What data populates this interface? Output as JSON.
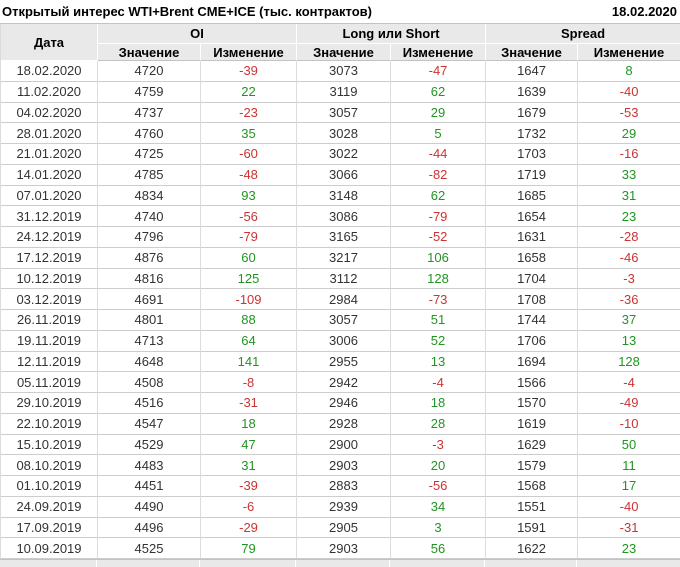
{
  "header": {
    "title": "Открытый интерес WTI+Brent CME+ICE (тыс. контрактов)",
    "date": "18.02.2020"
  },
  "colors": {
    "positive_change": "#219421",
    "negative_change": "#cc3333",
    "header_background": "#e9e9e9"
  },
  "chart_data": {
    "type": "table",
    "title": "Открытый интерес WTI+Brent CME+ICE (тыс. контрактов)",
    "as_of_date": "18.02.2020",
    "units": "тыс. контрактов",
    "date_column_label": "Дата",
    "value_label": "Значение",
    "change_label": "Изменение",
    "column_groups": [
      {
        "label": "OI",
        "subcolumns": [
          "Значение",
          "Изменение"
        ]
      },
      {
        "label": "Long или Short",
        "subcolumns": [
          "Значение",
          "Изменение"
        ]
      },
      {
        "label": "Spread",
        "subcolumns": [
          "Значение",
          "Изменение"
        ]
      }
    ],
    "rows": [
      {
        "date": "18.02.2020",
        "oi_value": 4720,
        "oi_change": -39,
        "long_short_value": 3073,
        "long_short_change": -47,
        "spread_value": 1647,
        "spread_change": 8
      },
      {
        "date": "11.02.2020",
        "oi_value": 4759,
        "oi_change": 22,
        "long_short_value": 3119,
        "long_short_change": 62,
        "spread_value": 1639,
        "spread_change": -40
      },
      {
        "date": "04.02.2020",
        "oi_value": 4737,
        "oi_change": -23,
        "long_short_value": 3057,
        "long_short_change": 29,
        "spread_value": 1679,
        "spread_change": -53
      },
      {
        "date": "28.01.2020",
        "oi_value": 4760,
        "oi_change": 35,
        "long_short_value": 3028,
        "long_short_change": 5,
        "spread_value": 1732,
        "spread_change": 29
      },
      {
        "date": "21.01.2020",
        "oi_value": 4725,
        "oi_change": -60,
        "long_short_value": 3022,
        "long_short_change": -44,
        "spread_value": 1703,
        "spread_change": -16
      },
      {
        "date": "14.01.2020",
        "oi_value": 4785,
        "oi_change": -48,
        "long_short_value": 3066,
        "long_short_change": -82,
        "spread_value": 1719,
        "spread_change": 33
      },
      {
        "date": "07.01.2020",
        "oi_value": 4834,
        "oi_change": 93,
        "long_short_value": 3148,
        "long_short_change": 62,
        "spread_value": 1685,
        "spread_change": 31
      },
      {
        "date": "31.12.2019",
        "oi_value": 4740,
        "oi_change": -56,
        "long_short_value": 3086,
        "long_short_change": -79,
        "spread_value": 1654,
        "spread_change": 23
      },
      {
        "date": "24.12.2019",
        "oi_value": 4796,
        "oi_change": -79,
        "long_short_value": 3165,
        "long_short_change": -52,
        "spread_value": 1631,
        "spread_change": -28
      },
      {
        "date": "17.12.2019",
        "oi_value": 4876,
        "oi_change": 60,
        "long_short_value": 3217,
        "long_short_change": 106,
        "spread_value": 1658,
        "spread_change": -46
      },
      {
        "date": "10.12.2019",
        "oi_value": 4816,
        "oi_change": 125,
        "long_short_value": 3112,
        "long_short_change": 128,
        "spread_value": 1704,
        "spread_change": -3
      },
      {
        "date": "03.12.2019",
        "oi_value": 4691,
        "oi_change": -109,
        "long_short_value": 2984,
        "long_short_change": -73,
        "spread_value": 1708,
        "spread_change": -36
      },
      {
        "date": "26.11.2019",
        "oi_value": 4801,
        "oi_change": 88,
        "long_short_value": 3057,
        "long_short_change": 51,
        "spread_value": 1744,
        "spread_change": 37
      },
      {
        "date": "19.11.2019",
        "oi_value": 4713,
        "oi_change": 64,
        "long_short_value": 3006,
        "long_short_change": 52,
        "spread_value": 1706,
        "spread_change": 13
      },
      {
        "date": "12.11.2019",
        "oi_value": 4648,
        "oi_change": 141,
        "long_short_value": 2955,
        "long_short_change": 13,
        "spread_value": 1694,
        "spread_change": 128
      },
      {
        "date": "05.11.2019",
        "oi_value": 4508,
        "oi_change": -8,
        "long_short_value": 2942,
        "long_short_change": -4,
        "spread_value": 1566,
        "spread_change": -4
      },
      {
        "date": "29.10.2019",
        "oi_value": 4516,
        "oi_change": -31,
        "long_short_value": 2946,
        "long_short_change": 18,
        "spread_value": 1570,
        "spread_change": -49
      },
      {
        "date": "22.10.2019",
        "oi_value": 4547,
        "oi_change": 18,
        "long_short_value": 2928,
        "long_short_change": 28,
        "spread_value": 1619,
        "spread_change": -10
      },
      {
        "date": "15.10.2019",
        "oi_value": 4529,
        "oi_change": 47,
        "long_short_value": 2900,
        "long_short_change": -3,
        "spread_value": 1629,
        "spread_change": 50
      },
      {
        "date": "08.10.2019",
        "oi_value": 4483,
        "oi_change": 31,
        "long_short_value": 2903,
        "long_short_change": 20,
        "spread_value": 1579,
        "spread_change": 11
      },
      {
        "date": "01.10.2019",
        "oi_value": 4451,
        "oi_change": -39,
        "long_short_value": 2883,
        "long_short_change": -56,
        "spread_value": 1568,
        "spread_change": 17
      },
      {
        "date": "24.09.2019",
        "oi_value": 4490,
        "oi_change": -6,
        "long_short_value": 2939,
        "long_short_change": 34,
        "spread_value": 1551,
        "spread_change": -40
      },
      {
        "date": "17.09.2019",
        "oi_value": 4496,
        "oi_change": -29,
        "long_short_value": 2905,
        "long_short_change": 3,
        "spread_value": 1591,
        "spread_change": -31
      },
      {
        "date": "10.09.2019",
        "oi_value": 4525,
        "oi_change": 79,
        "long_short_value": 2903,
        "long_short_change": 56,
        "spread_value": 1622,
        "spread_change": 23
      }
    ]
  }
}
